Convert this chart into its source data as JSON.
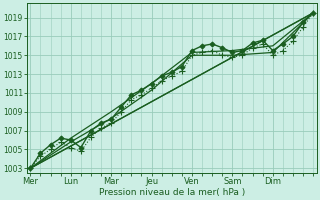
{
  "background_color": "#cceee4",
  "grid_color": "#99ccbb",
  "line_color": "#1a5e20",
  "xlabel_text": "Pression niveau de la mer( hPa )",
  "x_labels": [
    "Mer",
    "Lun",
    "Mar",
    "Jeu",
    "Ven",
    "Sam",
    "Dim"
  ],
  "x_tick_positions": [
    0,
    24,
    48,
    72,
    96,
    120,
    144
  ],
  "ylim": [
    1002.5,
    1020.5
  ],
  "yticks": [
    1003,
    1005,
    1007,
    1009,
    1011,
    1013,
    1015,
    1017,
    1019
  ],
  "xlim": [
    -2,
    170
  ],
  "series": [
    {
      "x": [
        0,
        6,
        12,
        18,
        24,
        30,
        36,
        42,
        48,
        54,
        60,
        66,
        72,
        78,
        84,
        90,
        96,
        102,
        108,
        114,
        120,
        126,
        132,
        138,
        144,
        150,
        156,
        162,
        168
      ],
      "y": [
        1003.0,
        1004.6,
        1005.5,
        1006.2,
        1006.0,
        1005.2,
        1007.0,
        1007.8,
        1008.2,
        1009.5,
        1010.8,
        1011.3,
        1012.0,
        1012.8,
        1013.2,
        1013.8,
        1015.5,
        1016.0,
        1016.2,
        1015.8,
        1015.3,
        1015.5,
        1016.3,
        1016.6,
        1015.5,
        1016.2,
        1017.0,
        1018.5,
        1019.5
      ],
      "linestyle": "-",
      "marker": "D",
      "markersize": 2.5,
      "linewidth": 1.0,
      "zorder": 5
    },
    {
      "x": [
        0,
        168
      ],
      "y": [
        1003.0,
        1019.5
      ],
      "linestyle": "-",
      "marker": null,
      "markersize": 0,
      "linewidth": 0.9,
      "zorder": 3
    },
    {
      "x": [
        0,
        168
      ],
      "y": [
        1003.0,
        1019.5
      ],
      "linestyle": "-",
      "marker": null,
      "markersize": 0,
      "linewidth": 0.9,
      "zorder": 3
    },
    {
      "x": [
        0,
        24,
        48,
        72,
        96,
        120,
        144,
        168
      ],
      "y": [
        1003.0,
        1006.2,
        1009.0,
        1012.0,
        1015.3,
        1015.5,
        1016.0,
        1019.5
      ],
      "linestyle": "-",
      "marker": null,
      "markersize": 0,
      "linewidth": 0.9,
      "zorder": 3
    },
    {
      "x": [
        0,
        24,
        48,
        72,
        96,
        120,
        144,
        168
      ],
      "y": [
        1003.0,
        1005.8,
        1008.3,
        1011.3,
        1015.0,
        1015.0,
        1015.3,
        1019.5
      ],
      "linestyle": "-",
      "marker": null,
      "markersize": 0,
      "linewidth": 0.9,
      "zorder": 3
    },
    {
      "x": [
        0,
        6,
        12,
        18,
        24,
        30,
        36,
        42,
        48,
        54,
        60,
        66,
        72,
        78,
        84,
        90,
        96,
        102,
        108,
        114,
        120,
        126,
        132,
        138,
        144,
        150,
        156,
        162,
        168
      ],
      "y": [
        1003.0,
        1004.3,
        1005.0,
        1005.8,
        1005.2,
        1004.8,
        1006.3,
        1007.3,
        1007.8,
        1009.0,
        1010.3,
        1010.8,
        1011.5,
        1012.3,
        1012.8,
        1013.3,
        1015.0,
        1015.3,
        1015.5,
        1015.0,
        1014.8,
        1015.0,
        1015.8,
        1016.2,
        1015.0,
        1015.5,
        1016.5,
        1018.0,
        1019.5
      ],
      "linestyle": ":",
      "marker": "+",
      "markersize": 4,
      "linewidth": 0.8,
      "zorder": 4
    }
  ]
}
